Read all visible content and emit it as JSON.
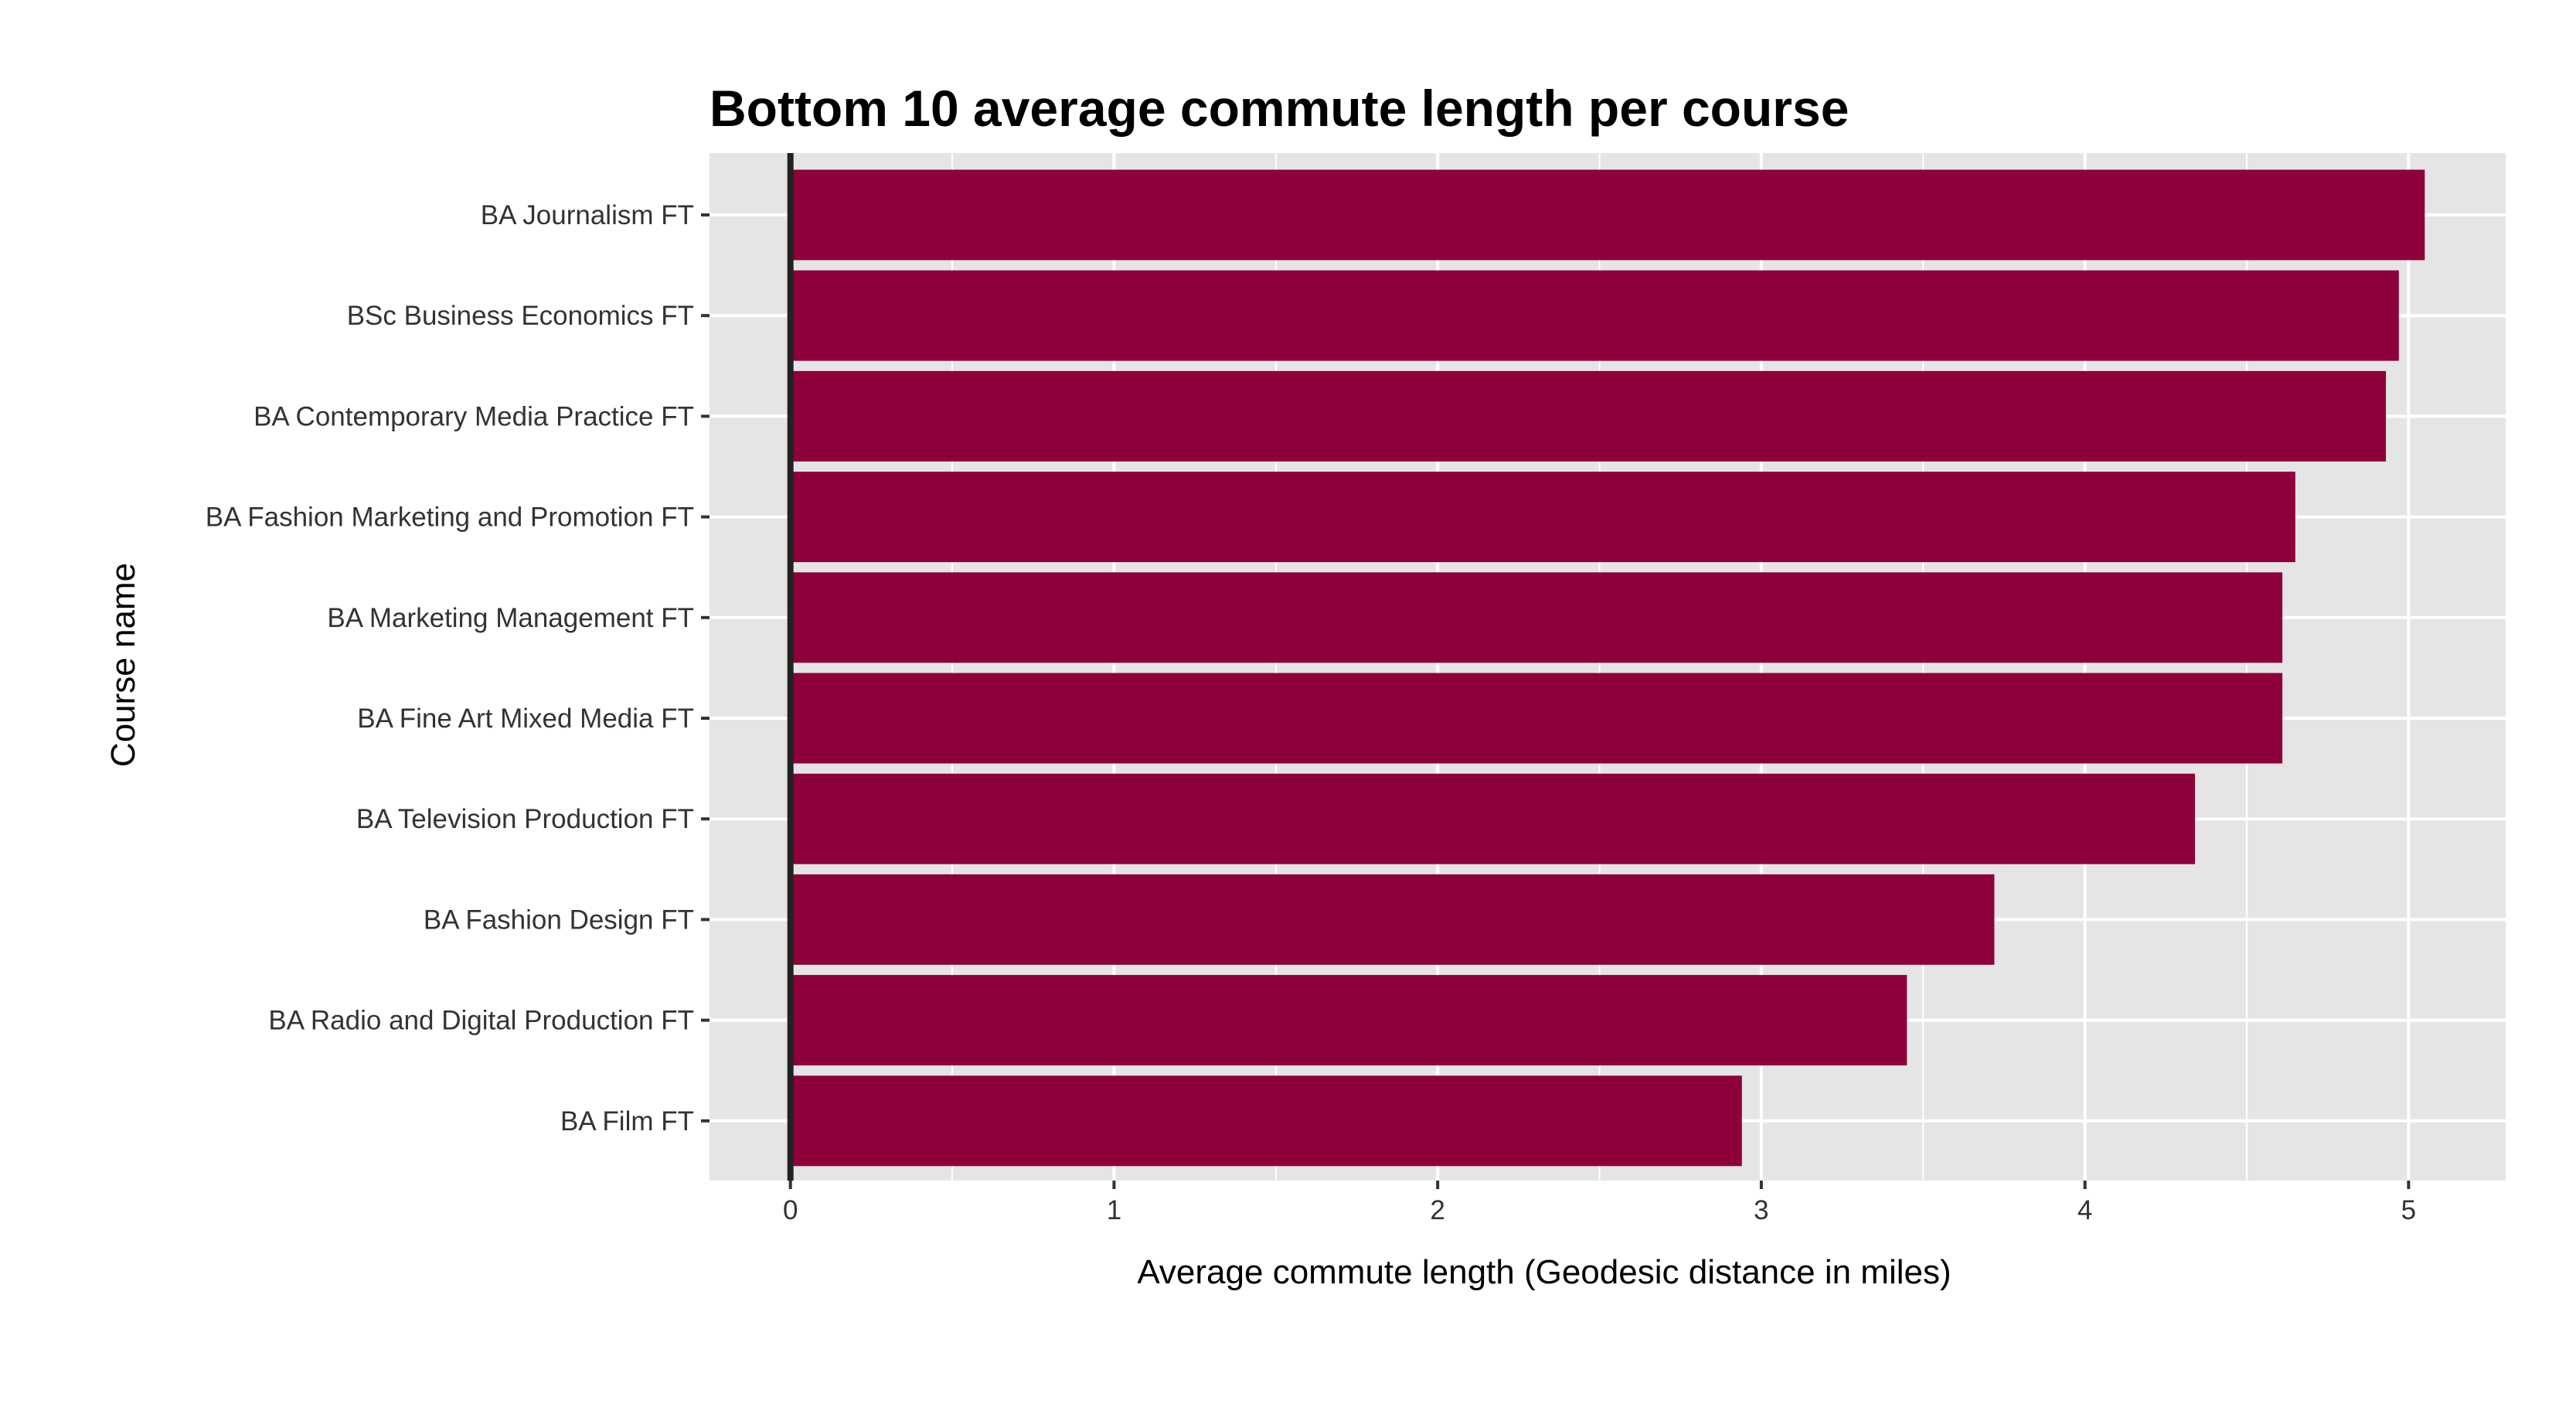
{
  "chart_data": {
    "type": "bar",
    "orientation": "horizontal",
    "title": "Bottom 10 average commute length per course",
    "xlabel": "Average commute length (Geodesic distance in miles)",
    "ylabel": "Course name",
    "categories": [
      "BA Journalism FT",
      "BSc Business Economics FT",
      "BA Contemporary Media Practice FT",
      "BA Fashion Marketing and Promotion FT",
      "BA Marketing Management FT",
      "BA Fine Art Mixed Media FT",
      "BA Television Production FT",
      "BA Fashion Design FT",
      "BA Radio and Digital Production FT",
      "BA Film FT"
    ],
    "values": [
      5.05,
      4.97,
      4.93,
      4.65,
      4.61,
      4.61,
      4.34,
      3.72,
      3.45,
      2.94
    ],
    "xlim": [
      -0.25,
      5.3
    ],
    "xticks": [
      0,
      1,
      2,
      3,
      4,
      5
    ],
    "grid": true,
    "vline_at": 0,
    "colors": {
      "bar": "#8E003B",
      "panel": "#E5E5E5",
      "grid": "#FFFFFF",
      "zero_line": "#222222",
      "text": "#333333"
    }
  }
}
